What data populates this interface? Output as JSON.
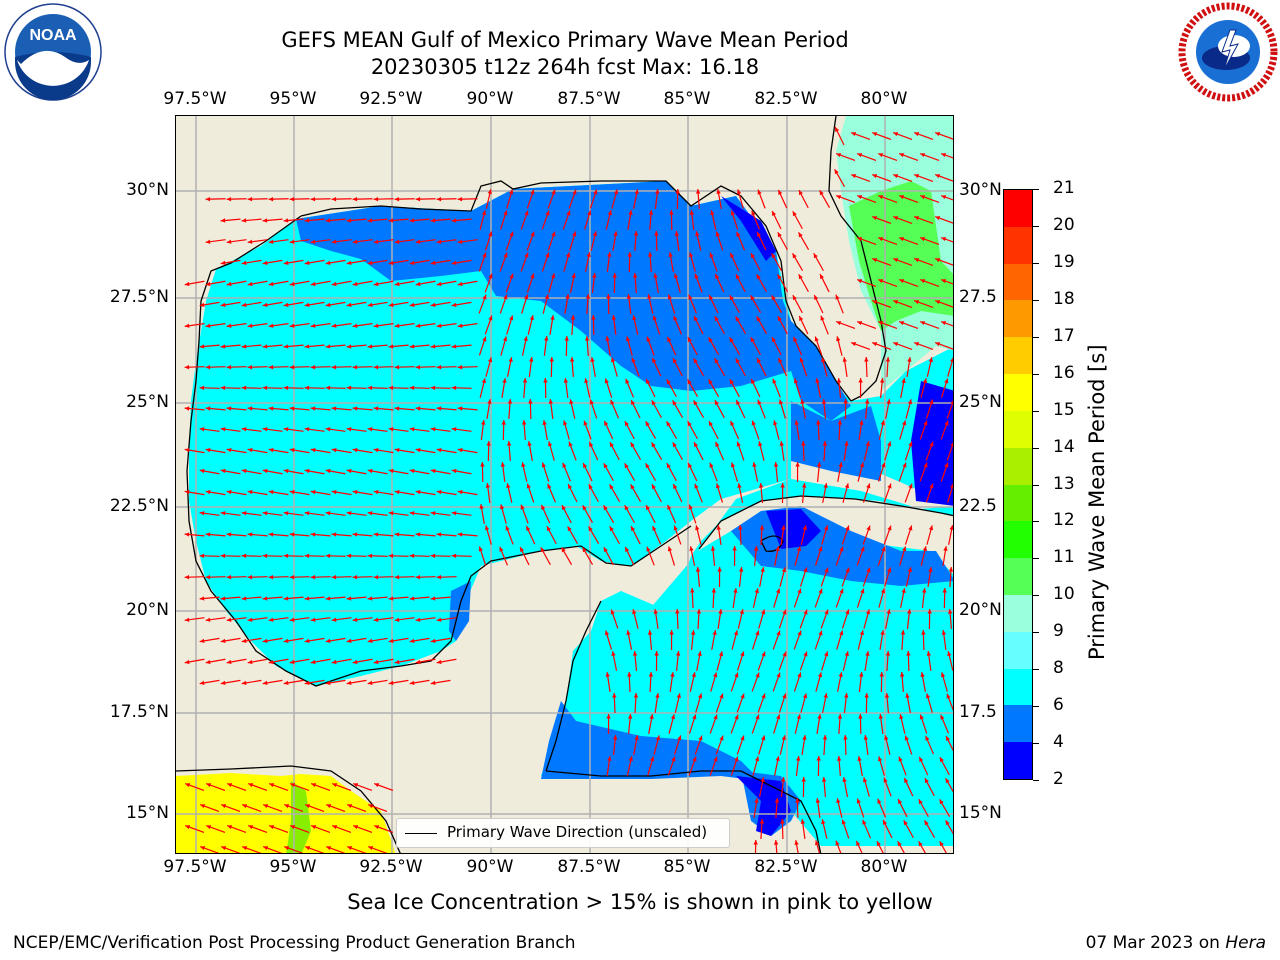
{
  "title": {
    "line1": "GEFS MEAN Gulf of Mexico Primary Wave Mean Period",
    "line2": "20230305 t12z 264h fcst   Max: 16.18"
  },
  "logos": {
    "left": {
      "icon": "noaa-logo",
      "text": "NOAA"
    },
    "right": {
      "icon": "nws-logo",
      "text": "NATIONAL WEATHER SERVICE"
    }
  },
  "map": {
    "x_ticks": [
      "97.5°W",
      "95°W",
      "92.5°W",
      "90°W",
      "87.5°W",
      "85°W",
      "82.5°W",
      "80°W"
    ],
    "y_ticks_left": [
      "30°N",
      "27.5°N",
      "25°N",
      "22.5°N",
      "20°N",
      "17.5°N",
      "15°N"
    ],
    "y_ticks_right": [
      "30°N",
      "27.5",
      "25°N",
      "22.5",
      "20°N",
      "17.5",
      "15°N"
    ],
    "legend_label": "Primary Wave Direction (unscaled)",
    "colors": {
      "land": "#efecdc",
      "arrow": "#ff0000",
      "grid": "#b0b0b0",
      "coast": "#000000"
    }
  },
  "colorbar": {
    "title": "Primary Wave Mean Period [s]",
    "labels": [
      "2",
      "4",
      "6",
      "8",
      "9",
      "10",
      "11",
      "12",
      "13",
      "14",
      "15",
      "16",
      "17",
      "18",
      "19",
      "20",
      "21"
    ],
    "colors": [
      "#0000ff",
      "#0078ff",
      "#00ffff",
      "#66ffff",
      "#99ffdd",
      "#55ff55",
      "#22ff00",
      "#66ee00",
      "#aaee00",
      "#ddff00",
      "#ffff00",
      "#ffcc00",
      "#ff9900",
      "#ff6600",
      "#ff3300",
      "#ff0000"
    ]
  },
  "note": "Sea Ice Concentration > 15% is shown in pink to yellow",
  "footer": {
    "left": "NCEP/EMC/Verification Post Processing Product Generation Branch",
    "date": "07 Mar 2023 on ",
    "machine": "Hera"
  }
}
